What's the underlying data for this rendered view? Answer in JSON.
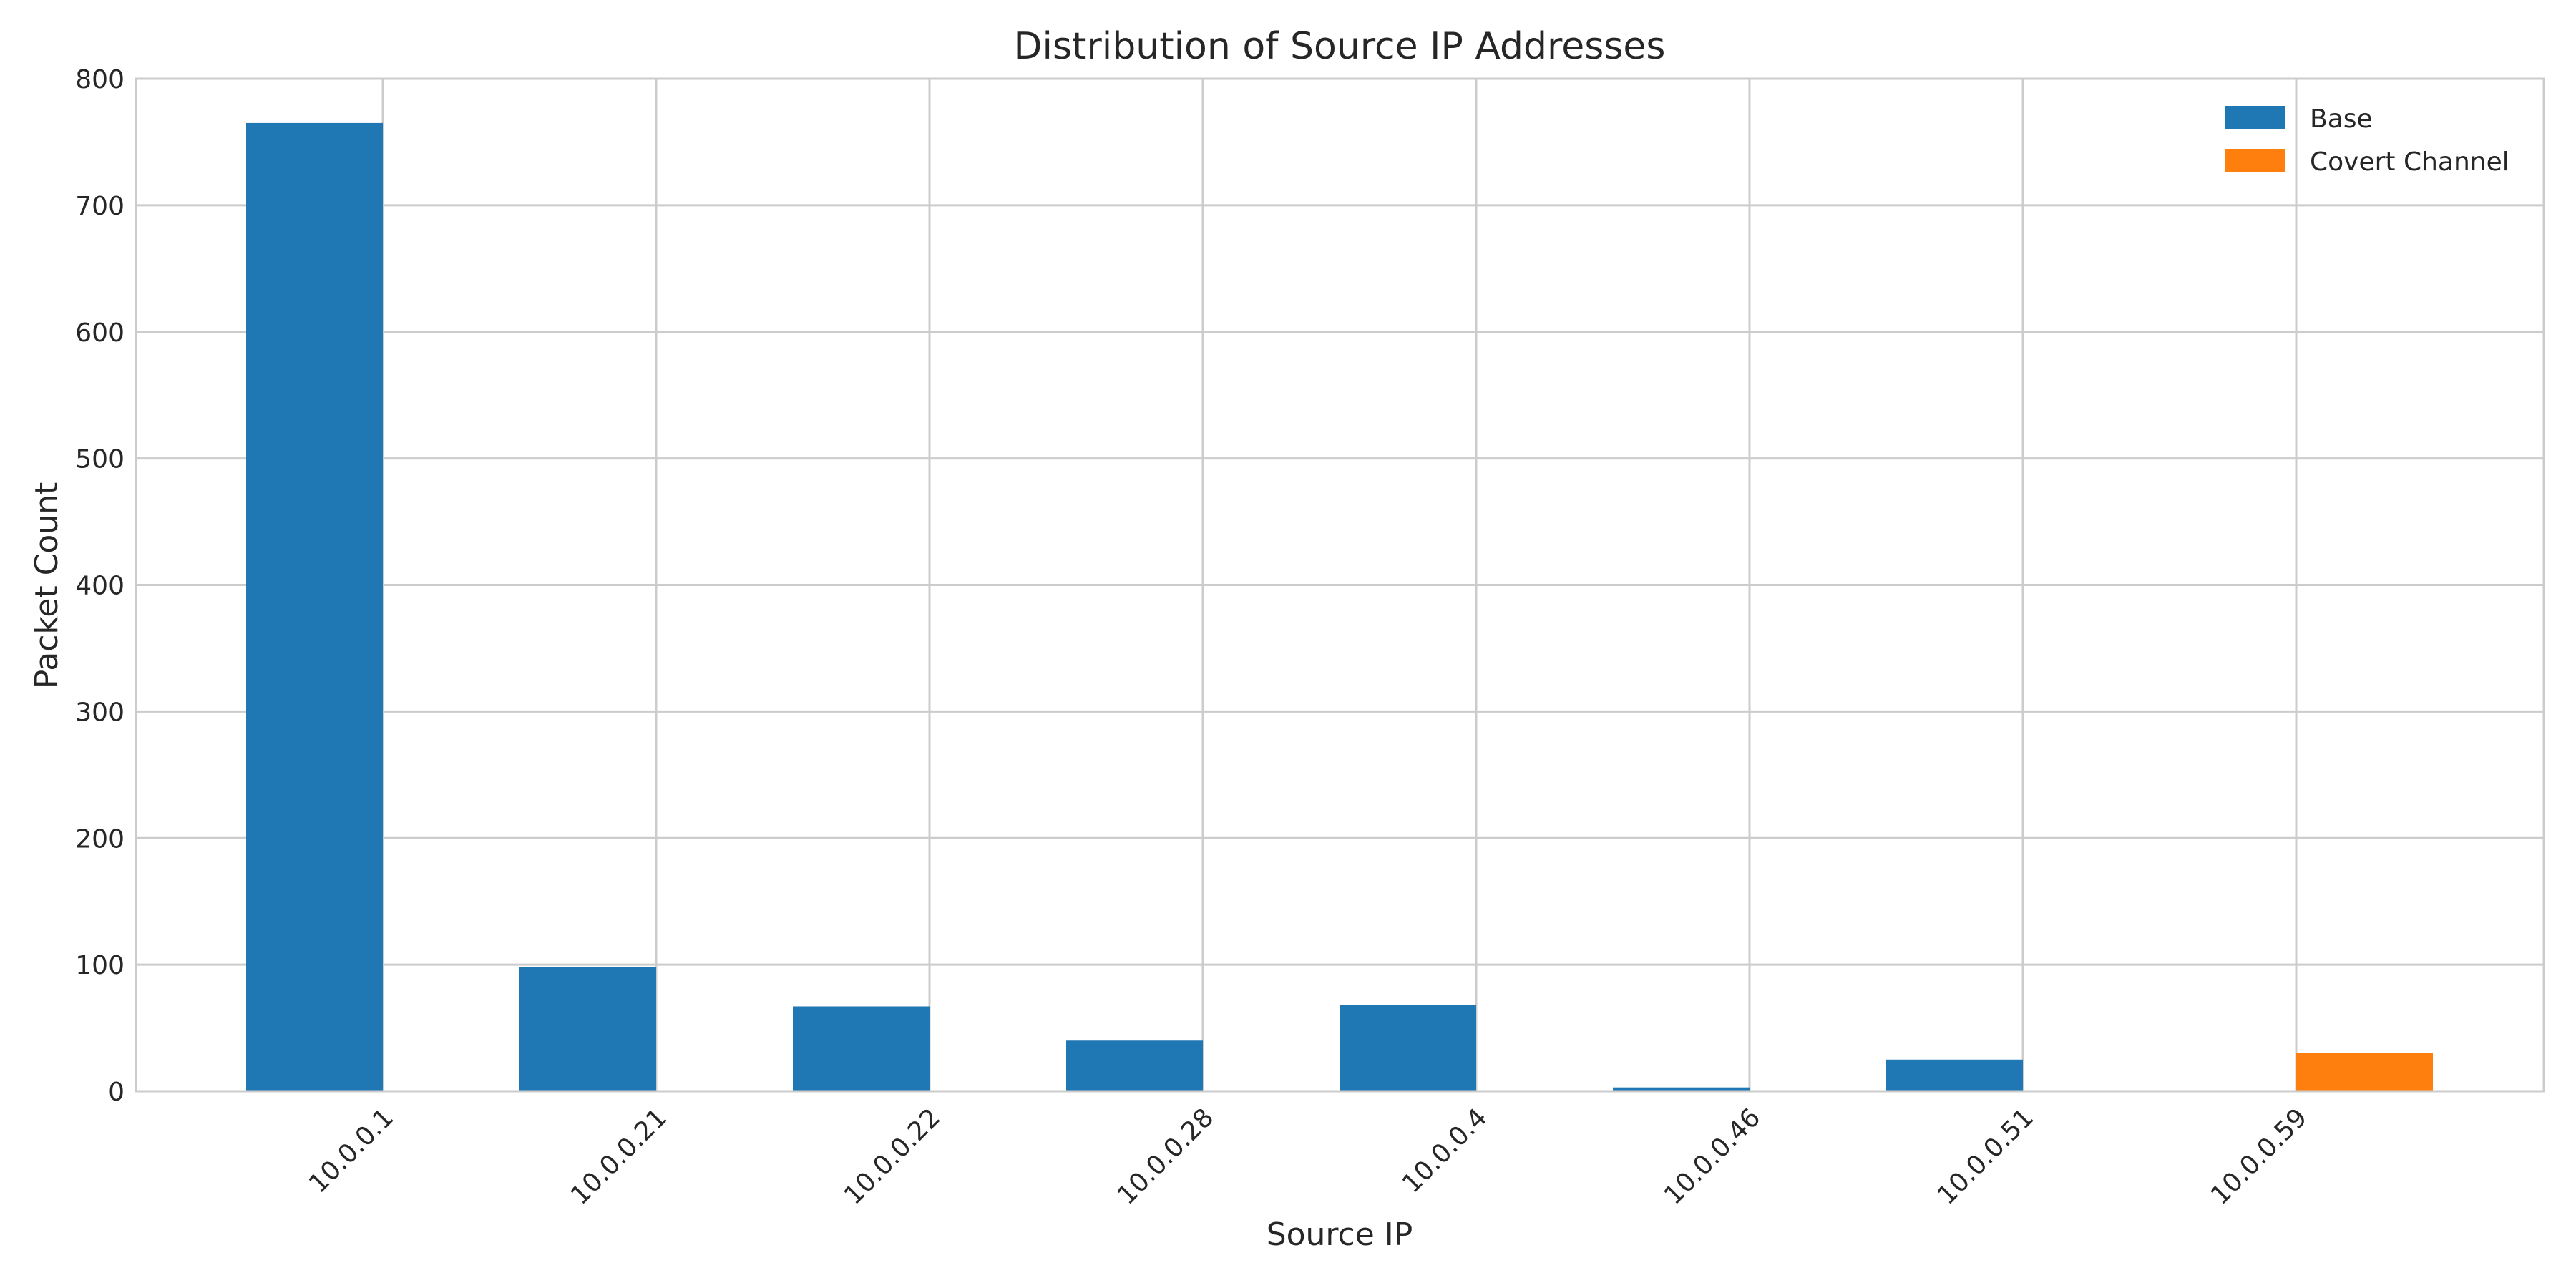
{
  "chart_data": {
    "type": "bar",
    "title": "Distribution of Source IP Addresses",
    "xlabel": "Source IP",
    "ylabel": "Packet Count",
    "categories": [
      "10.0.0.1",
      "10.0.0.21",
      "10.0.0.22",
      "10.0.0.28",
      "10.0.0.4",
      "10.0.0.46",
      "10.0.0.51",
      "10.0.0.59"
    ],
    "series": [
      {
        "name": "Base",
        "color": "#1f77b4",
        "values": [
          765,
          98,
          67,
          40,
          68,
          3,
          25,
          0
        ]
      },
      {
        "name": "Covert Channel",
        "color": "#ff7f0e",
        "values": [
          0,
          0,
          0,
          0,
          0,
          0,
          0,
          30
        ]
      }
    ],
    "ylim": [
      0,
      800
    ],
    "yticks": [
      0,
      100,
      200,
      300,
      400,
      500,
      600,
      700,
      800
    ],
    "grid": true,
    "legend_position": "top-right"
  }
}
